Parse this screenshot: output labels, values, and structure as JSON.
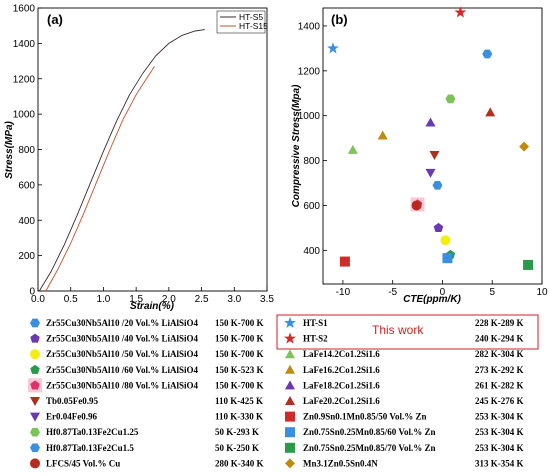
{
  "chart_data": [
    {
      "type": "line",
      "panel_label": "(a)",
      "xlabel": "Strain(%)",
      "ylabel": "Stress(MPa)",
      "xlim": [
        0,
        3.5
      ],
      "ylim": [
        0,
        1600
      ],
      "xticks": [
        "0.0",
        "0.5",
        "1.0",
        "1.5",
        "2.0",
        "2.5",
        "3.0",
        "3.5"
      ],
      "yticks": [
        "0",
        "200",
        "400",
        "600",
        "800",
        "1000",
        "1200",
        "1400",
        "1600"
      ],
      "legend_position": "top-right",
      "series": [
        {
          "name": "HT-S5",
          "color": "#3a2a2a",
          "x": [
            0.02,
            0.2,
            0.4,
            0.6,
            0.8,
            1.0,
            1.2,
            1.4,
            1.6,
            1.8,
            2.0,
            2.2,
            2.4,
            2.55
          ],
          "y": [
            0,
            110,
            260,
            430,
            610,
            790,
            960,
            1110,
            1230,
            1330,
            1400,
            1445,
            1470,
            1478
          ]
        },
        {
          "name": "HT-S15",
          "color": "#c0502c",
          "x": [
            0.12,
            0.3,
            0.5,
            0.7,
            0.9,
            1.1,
            1.3,
            1.5,
            1.7,
            1.78
          ],
          "y": [
            0,
            120,
            270,
            440,
            620,
            800,
            970,
            1110,
            1225,
            1270
          ]
        }
      ]
    },
    {
      "type": "scatter",
      "panel_label": "(b)",
      "xlabel": "CTE(ppm/K)",
      "ylabel": "Compressive Stress(Mpa)",
      "xlim": [
        -12,
        10
      ],
      "ylim": [
        250,
        1480
      ],
      "xticks": [
        "-10",
        "-5",
        "0",
        "5",
        "10"
      ],
      "yticks": [
        "400",
        "600",
        "800",
        "1000",
        "1200",
        "1400"
      ],
      "this_work_label": "This work",
      "points": [
        {
          "label": "Zr55Cu30Nb5Al10 /20 Vol.% LiAlSiO4",
          "temp": "150 K-700 K",
          "x": 4.5,
          "y": 1275,
          "marker": "hexagon",
          "color": "#3a8fe0"
        },
        {
          "label": "Zr55Cu30Nb5Al10 /40 Vol.% LiAlSiO4",
          "temp": "150 K-700 K",
          "x": -0.4,
          "y": 500,
          "marker": "pentagon",
          "color": "#6a38b0"
        },
        {
          "label": "Zr55Cu30Nb5Al10 /50 Vol.% LiAlSiO4",
          "temp": "150 K-700 K",
          "x": 0.3,
          "y": 445,
          "marker": "circle",
          "color": "#f5ec12"
        },
        {
          "label": "Zr55Cu30Nb5Al10 /60 Vol.% LiAlSiO4",
          "temp": "150 K-523 K",
          "x": 0.8,
          "y": 380,
          "marker": "pentagon",
          "color": "#2a9a4a"
        },
        {
          "label": "Zr55Cu30Nb5Al10 /80 Vol.% LiAlSiO4",
          "temp": "150 K-700 K",
          "x": -2.5,
          "y": 605,
          "marker": "pentagon",
          "color": "#e0306a"
        },
        {
          "label": "Tb0.05Fe0.95",
          "temp": "110 K-425 K",
          "x": -0.8,
          "y": 825,
          "marker": "triangle-down",
          "color": "#b03020"
        },
        {
          "label": "Er0.04Fe0.96",
          "temp": "110 K-330 K",
          "x": -1.2,
          "y": 745,
          "marker": "triangle-down",
          "color": "#6a38b0"
        },
        {
          "label": "Hf0.87Ta0.13Fe2Cu1.25",
          "temp": "50 K-293 K",
          "x": 0.8,
          "y": 1075,
          "marker": "hexagon",
          "color": "#7cc45a"
        },
        {
          "label": "Hf0.87Ta0.13Fe2Cu1.5",
          "temp": "50 K-250 K",
          "x": -0.5,
          "y": 690,
          "marker": "hexagon",
          "color": "#3a8fe0"
        },
        {
          "label": "LFCS/45 Vol.% Cu",
          "temp": "280 K-340 K",
          "x": -2.6,
          "y": 600,
          "marker": "circle",
          "color": "#b82a20"
        },
        {
          "label": "HT-S1",
          "temp": "228 K-289 K",
          "x": -11,
          "y": 1300,
          "marker": "star",
          "color": "#3a8fe0"
        },
        {
          "label": "HT-S2",
          "temp": "240 K-294 K",
          "x": 1.8,
          "y": 1460,
          "marker": "star",
          "color": "#d22a2a"
        },
        {
          "label": "LaFe14.2Co1.2Si1.6",
          "temp": "282 K-304 K",
          "x": -9,
          "y": 848,
          "marker": "triangle-up",
          "color": "#7cc45a"
        },
        {
          "label": "LaFe16.2Co1.2Si1.6",
          "temp": "273 K-292 K",
          "x": -6,
          "y": 912,
          "marker": "triangle-up",
          "color": "#c08a10"
        },
        {
          "label": "LaFe18.2Co1.2Si1.6",
          "temp": "261 K-282 K",
          "x": -1.2,
          "y": 970,
          "marker": "triangle-up",
          "color": "#6a38b0"
        },
        {
          "label": "LaFe20.2Co1.2Si1.6",
          "temp": "245 K-276 K",
          "x": 4.8,
          "y": 1015,
          "marker": "triangle-up",
          "color": "#b03020"
        },
        {
          "label": "Zn0.9Sn0.1Mn0.85/50 Vol.% Zn",
          "temp": "253 K-304 K",
          "x": -9.8,
          "y": 350,
          "marker": "square",
          "color": "#d22a2a"
        },
        {
          "label": "Zn0.75Sn0.25Mn0.85/60 Vol.% Zn",
          "temp": "253 K-304 K",
          "x": 0.5,
          "y": 365,
          "marker": "square",
          "color": "#3a8fe0"
        },
        {
          "label": "Zn0.75Sn0.25Mn0.85/70 Vol.% Zn",
          "temp": "253 K-304 K",
          "x": 8.6,
          "y": 335,
          "marker": "square",
          "color": "#2a9a4a"
        },
        {
          "label": "Mn3.1Zn0.5Sn0.4N",
          "temp": "313 K-354 K",
          "x": 8.2,
          "y": 862,
          "marker": "diamond",
          "color": "#c08a10"
        }
      ],
      "legend_left": [
        {
          "label": "Zr55Cu30Nb5Al10 /20 Vol.% LiAlSiO4",
          "temp": "150 K-700 K"
        },
        {
          "label": "Zr55Cu30Nb5Al10 /40 Vol.% LiAlSiO4",
          "temp": "150 K-700 K"
        },
        {
          "label": "Zr55Cu30Nb5Al10 /50 Vol.% LiAlSiO4",
          "temp": "150 K-700 K"
        },
        {
          "label": "Zr55Cu30Nb5Al10 /60 Vol.% LiAlSiO4",
          "temp": "150 K-523 K"
        },
        {
          "label": "Zr55Cu30Nb5Al10 /80 Vol.% LiAlSiO4",
          "temp": "150 K-700 K"
        },
        {
          "label": "Tb0.05Fe0.95",
          "temp": "110 K-425 K"
        },
        {
          "label": "Er0.04Fe0.96",
          "temp": "110 K-330 K"
        },
        {
          "label": "Hf0.87Ta0.13Fe2Cu1.25",
          "temp": "50 K-293 K"
        },
        {
          "label": "Hf0.87Ta0.13Fe2Cu1.5",
          "temp": "50 K-250 K"
        },
        {
          "label": "LFCS/45 Vol.% Cu",
          "temp": "280 K-340 K"
        }
      ],
      "legend_right": [
        {
          "label": "HT-S1",
          "temp": "228 K-289 K"
        },
        {
          "label": "HT-S2",
          "temp": "240 K-294 K"
        },
        {
          "label": "LaFe14.2Co1.2Si1.6",
          "temp": "282 K-304 K"
        },
        {
          "label": "LaFe16.2Co1.2Si1.6",
          "temp": "273 K-292 K"
        },
        {
          "label": "LaFe18.2Co1.2Si1.6",
          "temp": "261 K-282 K"
        },
        {
          "label": "LaFe20.2Co1.2Si1.6",
          "temp": "245 K-276 K"
        },
        {
          "label": "Zn0.9Sn0.1Mn0.85/50 Vol.% Zn",
          "temp": "253 K-304 K"
        },
        {
          "label": "Zn0.75Sn0.25Mn0.85/60 Vol.% Zn",
          "temp": "253 K-304 K"
        },
        {
          "label": "Zn0.75Sn0.25Mn0.85/70 Vol.% Zn",
          "temp": "253 K-304 K"
        },
        {
          "label": "Mn3.1Zn0.5Sn0.4N",
          "temp": "313 K-354 K"
        }
      ]
    }
  ]
}
